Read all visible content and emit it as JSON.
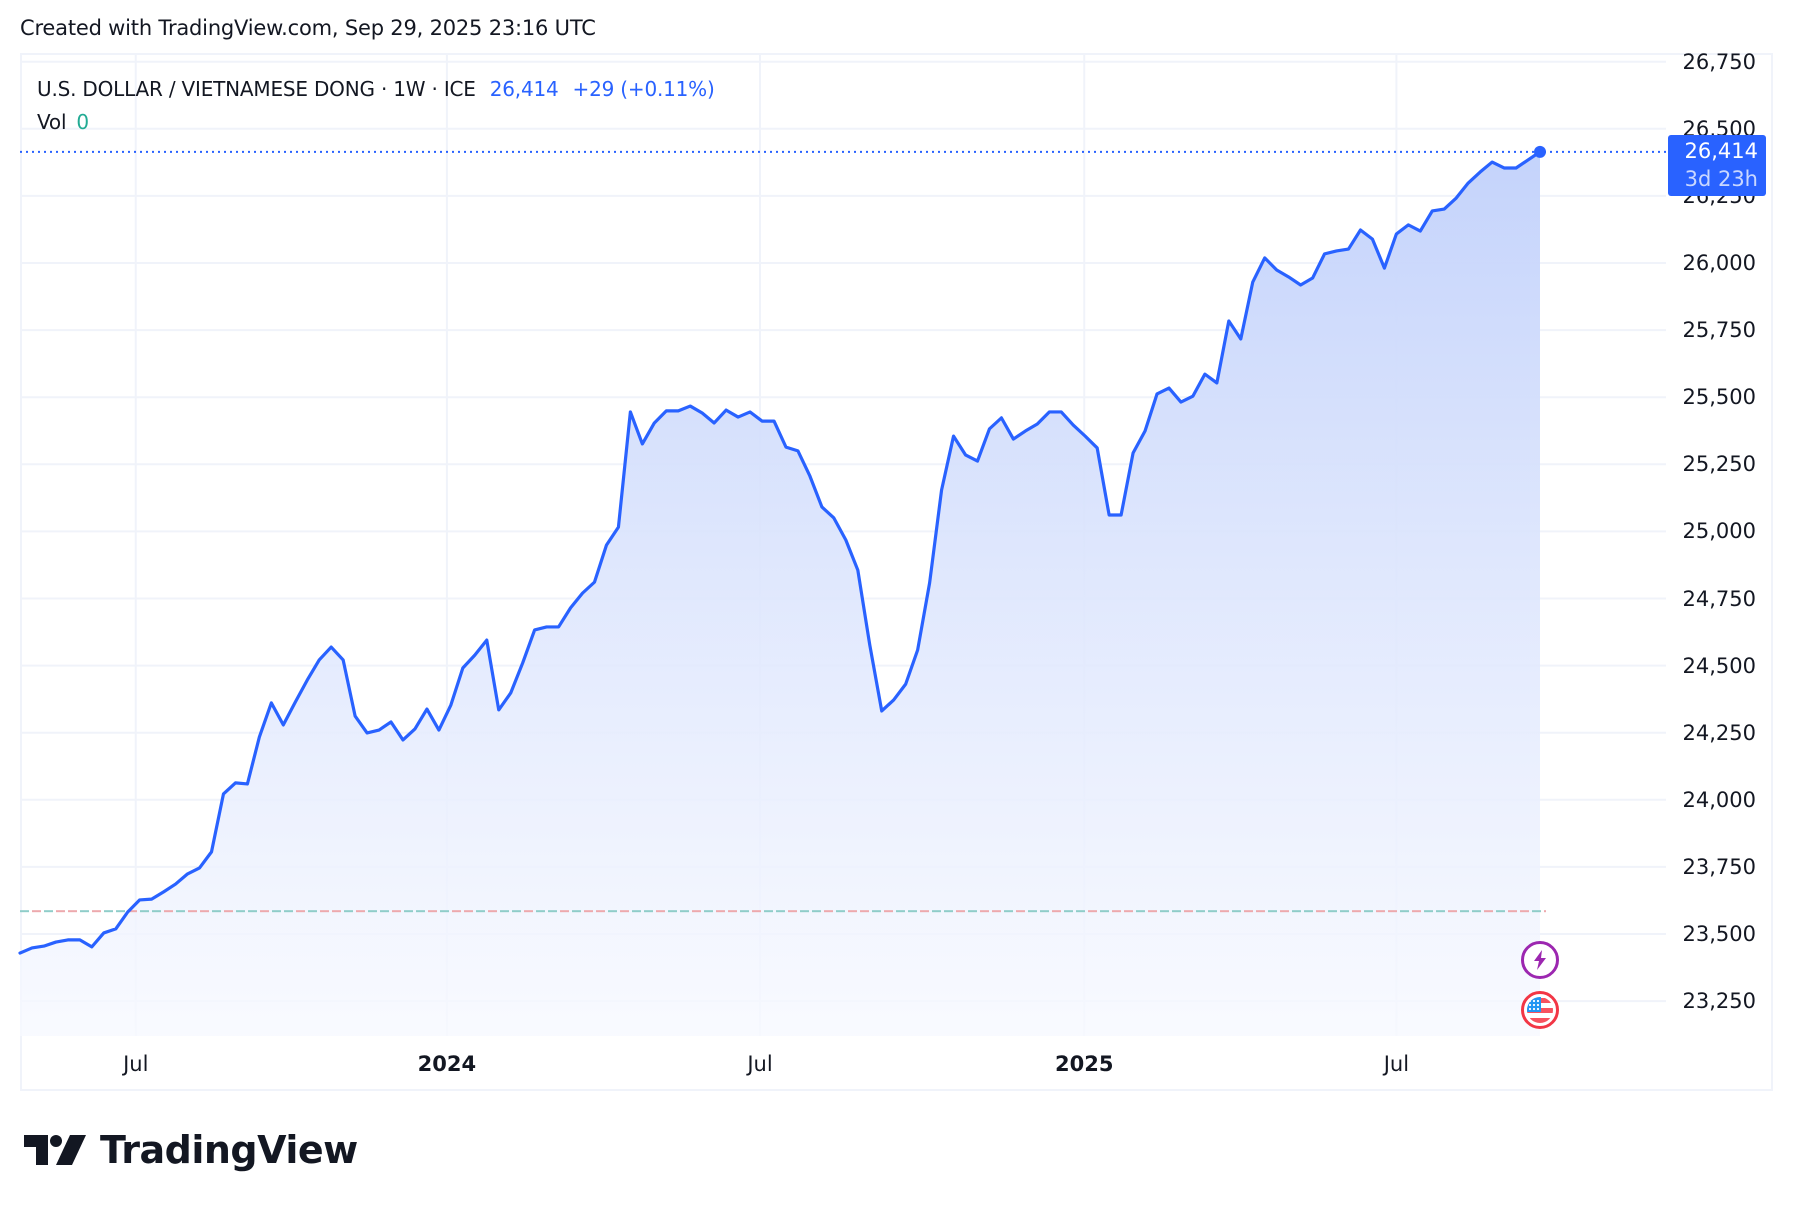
{
  "header": {
    "created_text": "Created with TradingView.com, Sep 29, 2025 23:16 UTC"
  },
  "legend": {
    "symbol": "U.S. DOLLAR / VIETNAMESE DONG · 1W · ICE",
    "last_price": "26,414",
    "change": "+29 (+0.11%)",
    "vol_label": "Vol",
    "vol_value": "0"
  },
  "price_tag": {
    "value": "26,414",
    "countdown": "3d 23h"
  },
  "colors": {
    "line": "#2962ff",
    "fill_top": "#c4d3fb",
    "fill_bottom": "#f7f9ff",
    "grid": "#f0f3fa",
    "vol_up": "#8fcdc9",
    "vol_down": "#eda9ad",
    "event_lightning": "#9c27b0",
    "event_flag": "#f23645"
  },
  "events": [
    {
      "type": "lightning-icon",
      "label": "event"
    },
    {
      "type": "us-flag-icon",
      "label": "economic event"
    }
  ],
  "logo": {
    "text": "TradingView"
  },
  "chart_data": {
    "type": "area",
    "title": "U.S. DOLLAR / VIETNAMESE DONG · 1W · ICE",
    "xlabel": "",
    "ylabel": "",
    "ylim": [
      23120,
      26790
    ],
    "y_ticks": [
      "23,250",
      "23,500",
      "23,750",
      "24,000",
      "24,250",
      "24,500",
      "24,750",
      "25,000",
      "25,250",
      "25,500",
      "25,750",
      "26,000",
      "26,250",
      "26,500",
      "26,750"
    ],
    "y_tick_values": [
      23250,
      23500,
      23750,
      24000,
      24250,
      24500,
      24750,
      25000,
      25250,
      25500,
      25750,
      26000,
      26250,
      26500,
      26750
    ],
    "x_ticks": [
      {
        "label": "Jul",
        "index": 9.67,
        "bold": false
      },
      {
        "label": "2024",
        "index": 35.67,
        "bold": true
      },
      {
        "label": "Jul",
        "index": 61.83,
        "bold": false
      },
      {
        "label": "2025",
        "index": 88.92,
        "bold": true
      },
      {
        "label": "Jul",
        "index": 115.0,
        "bold": false
      }
    ],
    "grid": true,
    "legend_position": "top-left",
    "interval": "1W",
    "last_value": 26414,
    "baseline_value": 23585,
    "series": [
      {
        "name": "USDVND",
        "values": [
          23429,
          23448,
          23455,
          23470,
          23478,
          23478,
          23452,
          23504,
          23519,
          23582,
          23627,
          23630,
          23657,
          23686,
          23724,
          23746,
          23806,
          24022,
          24063,
          24059,
          24234,
          24361,
          24279,
          24364,
          24446,
          24521,
          24569,
          24521,
          24312,
          24249,
          24260,
          24290,
          24223,
          24264,
          24338,
          24260,
          24353,
          24491,
          24539,
          24595,
          24335,
          24398,
          24510,
          24633,
          24644,
          24644,
          24715,
          24770,
          24811,
          24949,
          25016,
          25445,
          25326,
          25404,
          25449,
          25449,
          25467,
          25441,
          25404,
          25452,
          25426,
          25445,
          25411,
          25411,
          25314,
          25300,
          25206,
          25091,
          25050,
          24968,
          24856,
          24577,
          24331,
          24372,
          24431,
          24558,
          24808,
          25154,
          25355,
          25285,
          25262,
          25382,
          25423,
          25344,
          25374,
          25400,
          25445,
          25445,
          25396,
          25355,
          25311,
          25061,
          25061,
          25292,
          25374,
          25512,
          25534,
          25482,
          25504,
          25586,
          25553,
          25784,
          25717,
          25929,
          26019,
          25974,
          25948,
          25918,
          25944,
          26034,
          26045,
          26052,
          26123,
          26089,
          25981,
          26108,
          26142,
          26119,
          26194,
          26201,
          26242,
          26298,
          26339,
          26376,
          26354,
          26354,
          26384,
          26414
        ]
      }
    ]
  }
}
